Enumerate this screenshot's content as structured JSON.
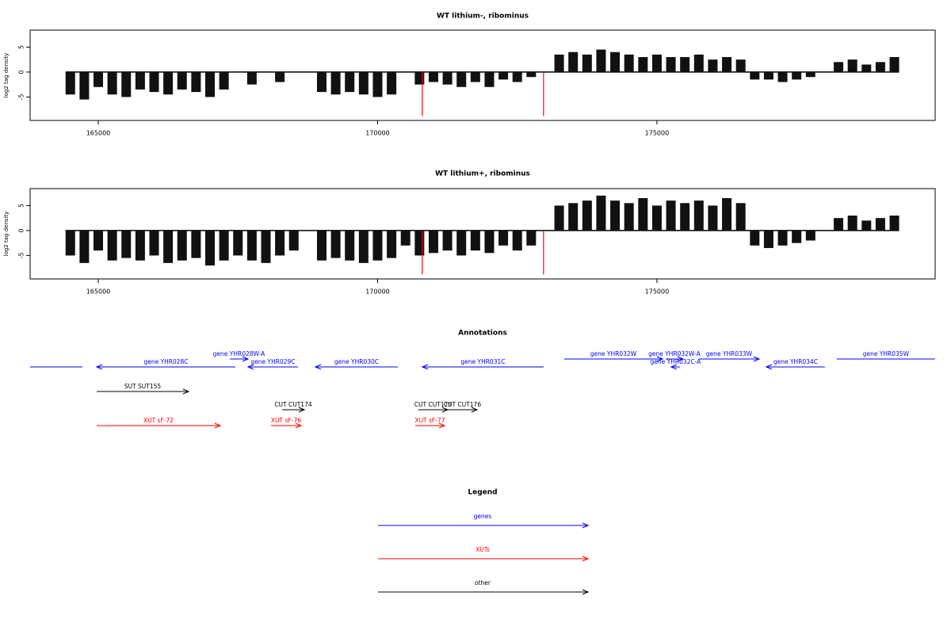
{
  "chart_data": [
    {
      "type": "bar",
      "title": "WT lithium-, ribominus",
      "ylabel": "log2 tag density",
      "xlim": [
        163780,
        179980
      ],
      "ylim": [
        -9.7,
        8.4
      ],
      "xticks": [
        165000,
        170000,
        175000
      ],
      "yticks": [
        -5,
        0,
        5
      ],
      "x": [
        164500,
        164750,
        165000,
        165250,
        165500,
        165750,
        166000,
        166250,
        166500,
        166750,
        167000,
        167250,
        167500,
        167750,
        168000,
        168250,
        168500,
        168750,
        169000,
        169250,
        169500,
        169750,
        170000,
        170250,
        170500,
        170750,
        171000,
        171250,
        171500,
        171750,
        172000,
        172250,
        172500,
        172750,
        173000,
        173250,
        173500,
        173750,
        174000,
        174250,
        174500,
        174750,
        175000,
        175250,
        175500,
        175750,
        176000,
        176250,
        176500,
        176750,
        177000,
        177250,
        177500,
        177750,
        178000,
        178250,
        178500,
        178750,
        179000,
        179250
      ],
      "color": "#111111",
      "values": [
        -4.5,
        -5.5,
        -3,
        -4.5,
        -5,
        -3.5,
        -4,
        -4.5,
        -3.5,
        -4,
        -5,
        -3.5,
        null,
        -2.5,
        null,
        -2,
        null,
        null,
        -4,
        -4.5,
        -4,
        -4.5,
        -5,
        -4.5,
        null,
        -2.5,
        -2,
        -2.5,
        -3,
        -2,
        -3,
        -1.5,
        -2,
        -1,
        null,
        3.5,
        4,
        3.5,
        4.5,
        4,
        3.5,
        3,
        3.5,
        3,
        3,
        3.5,
        2.5,
        3,
        2.5,
        -1.5,
        -1.5,
        -2,
        -1.5,
        -1,
        null,
        2,
        2.5,
        1.5,
        2,
        3
      ],
      "highlights": {
        "color": "#ff0000",
        "x": [
          170800,
          172970
        ],
        "values": [
          -8.8,
          -8.8
        ]
      }
    },
    {
      "type": "bar",
      "title": "WT lithium+, ribominus",
      "ylabel": "log2 tag density",
      "xlim": [
        163780,
        179980
      ],
      "ylim": [
        -9.7,
        8.4
      ],
      "xticks": [
        165000,
        170000,
        175000
      ],
      "yticks": [
        -5,
        0,
        5
      ],
      "x": [
        164500,
        164750,
        165000,
        165250,
        165500,
        165750,
        166000,
        166250,
        166500,
        166750,
        167000,
        167250,
        167500,
        167750,
        168000,
        168250,
        168500,
        168750,
        169000,
        169250,
        169500,
        169750,
        170000,
        170250,
        170500,
        170750,
        171000,
        171250,
        171500,
        171750,
        172000,
        172250,
        172500,
        172750,
        173000,
        173250,
        173500,
        173750,
        174000,
        174250,
        174500,
        174750,
        175000,
        175250,
        175500,
        175750,
        176000,
        176250,
        176500,
        176750,
        177000,
        177250,
        177500,
        177750,
        178000,
        178250,
        178500,
        178750,
        179000,
        179250
      ],
      "color": "#111111",
      "values": [
        -5,
        -6.5,
        -4,
        -6,
        -5.5,
        -6,
        -5,
        -6.5,
        -6,
        -5.5,
        -7,
        -6,
        -5,
        -6,
        -6.5,
        -5,
        -4,
        null,
        -6,
        -5.5,
        -6,
        -6.5,
        -6,
        -5.5,
        -3,
        -5,
        -4.5,
        -4,
        -5,
        -4,
        -4.5,
        -3,
        -4,
        -3,
        null,
        5,
        5.5,
        6,
        7,
        6,
        5.5,
        6.5,
        5,
        6,
        5.5,
        6,
        5,
        6.5,
        5.5,
        -3,
        -3.5,
        -3,
        -2.5,
        -2,
        null,
        2.5,
        3,
        2,
        2.5,
        3
      ],
      "highlights": {
        "color": "#ff0000",
        "x": [
          170800,
          172970
        ],
        "values": [
          -8.8,
          -8.8
        ]
      }
    },
    {
      "type": "annotation",
      "title": "Annotations",
      "legend_title": "Legend",
      "xlim": [
        163780,
        179980
      ],
      "groups": [
        {
          "name": "genes",
          "color": "#0000ff",
          "features": [
            {
              "label": null,
              "start": 163780,
              "end": 164716,
              "strand": null
            },
            {
              "label": "gene YHR028C",
              "start": 164972,
              "end": 167454,
              "strand": "-"
            },
            {
              "label": "gene YHR028W-A",
              "start": 167355,
              "end": 167681,
              "strand": "+"
            },
            {
              "label": "gene YHR029C",
              "start": 167681,
              "end": 168574,
              "strand": "-"
            },
            {
              "label": "gene YHR030C",
              "start": 168886,
              "end": 170362,
              "strand": "-"
            },
            {
              "label": "gene YHR031C",
              "start": 170801,
              "end": 172971,
              "strand": "-"
            },
            {
              "label": "gene YHR032W",
              "start": 173340,
              "end": 175099,
              "strand": "+"
            },
            {
              "label": "gene YHR032W-A",
              "start": 175156,
              "end": 175468,
              "strand": "+"
            },
            {
              "label": "gene YHR032C-A",
              "start": 175255,
              "end": 175411,
              "strand": "-"
            },
            {
              "label": "gene YHR033W",
              "start": 175752,
              "end": 176829,
              "strand": "+"
            },
            {
              "label": "gene YHR034C",
              "start": 176957,
              "end": 178007,
              "strand": "-"
            },
            {
              "label": "gene YHR035W",
              "start": 178219,
              "end": 179978,
              "strand": null
            }
          ]
        },
        {
          "name": "XUTs",
          "color": "#ff0000",
          "features": [
            {
              "label": "XUT sF-72",
              "start": 164972,
              "end": 167184,
              "strand": "+"
            },
            {
              "label": "XUT sF-76",
              "start": 168092,
              "end": 168631,
              "strand": "+"
            },
            {
              "label": "XUT sF-77",
              "start": 170674,
              "end": 171198,
              "strand": "+"
            }
          ]
        },
        {
          "name": "other",
          "color": "#000000",
          "features": [
            {
              "label": "SUT SUT155",
              "start": 164972,
              "end": 166617,
              "strand": "+"
            },
            {
              "label": "CUT CUT174",
              "start": 168291,
              "end": 168688,
              "strand": "+"
            },
            {
              "label": "CUT CUT175",
              "start": 170730,
              "end": 171255,
              "strand": "+"
            },
            {
              "label": "CUT CUT176",
              "start": 171255,
              "end": 171780,
              "strand": "+"
            }
          ]
        }
      ]
    }
  ]
}
